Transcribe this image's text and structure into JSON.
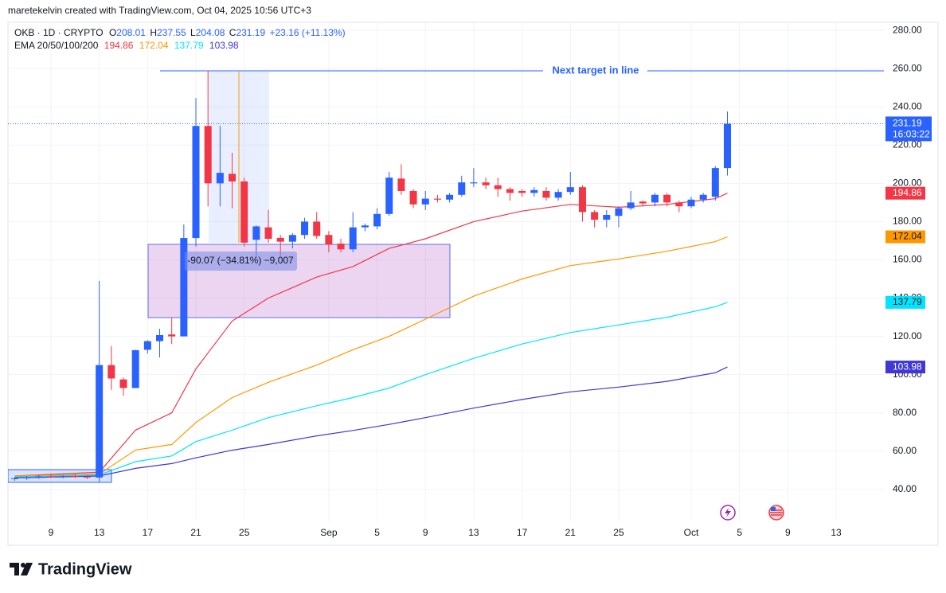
{
  "header": {
    "credit": "maretekelvin created with TradingView.com, Oct 04, 2025 10:56 UTC+3",
    "symbol": "OKB · 1D · CRYPTO",
    "ohlc_labels": [
      "O",
      "H",
      "L",
      "C"
    ],
    "change": "+23.16 (+11.13%)",
    "ema_label": "EMA 20/50/100/200",
    "countdown": "16:03:22",
    "logo": "TradingView"
  },
  "chart_data": {
    "type": "candlestick",
    "up_color": "#2962ff",
    "down_color": "#f23645",
    "x": [
      "2025-08-06",
      "2025-08-07",
      "2025-08-08",
      "2025-08-09",
      "2025-08-10",
      "2025-08-11",
      "2025-08-12",
      "2025-08-13",
      "2025-08-14",
      "2025-08-15",
      "2025-08-16",
      "2025-08-17",
      "2025-08-18",
      "2025-08-19",
      "2025-08-20",
      "2025-08-21",
      "2025-08-22",
      "2025-08-23",
      "2025-08-24",
      "2025-08-25",
      "2025-08-26",
      "2025-08-27",
      "2025-08-28",
      "2025-08-29",
      "2025-08-30",
      "2025-08-31",
      "2025-09-01",
      "2025-09-02",
      "2025-09-03",
      "2025-09-04",
      "2025-09-05",
      "2025-09-06",
      "2025-09-07",
      "2025-09-08",
      "2025-09-09",
      "2025-09-10",
      "2025-09-11",
      "2025-09-12",
      "2025-09-13",
      "2025-09-14",
      "2025-09-15",
      "2025-09-16",
      "2025-09-17",
      "2025-09-18",
      "2025-09-19",
      "2025-09-20",
      "2025-09-21",
      "2025-09-22",
      "2025-09-23",
      "2025-09-24",
      "2025-09-25",
      "2025-09-26",
      "2025-09-27",
      "2025-09-28",
      "2025-09-29",
      "2025-09-30",
      "2025-10-01",
      "2025-10-02",
      "2025-10-03",
      "2025-10-04"
    ],
    "open": [
      45.5,
      45.8,
      46.3,
      46.8,
      46.5,
      47,
      46.5,
      46.2,
      105,
      97.5,
      93,
      113,
      117.5,
      121,
      120,
      171.4,
      230,
      200,
      205,
      201,
      170.5,
      177,
      171.5,
      169.5,
      173,
      180,
      173,
      168.5,
      165.5,
      177,
      177.5,
      184,
      202.5,
      196,
      189,
      192,
      191.5,
      194,
      200,
      200.5,
      199,
      197,
      196,
      195,
      196,
      192.5,
      195.5,
      198,
      185,
      181,
      183,
      187,
      190.5,
      190,
      194,
      190,
      188,
      191.5,
      193,
      208.01
    ],
    "high": [
      46.5,
      47,
      47.5,
      47.8,
      47.5,
      48,
      47.5,
      149,
      115,
      98.5,
      113,
      118,
      124,
      130,
      178.5,
      244.6,
      259,
      230,
      216,
      203,
      178,
      186,
      173,
      174,
      182,
      185,
      175,
      171,
      185,
      179,
      187,
      206,
      210,
      197,
      196,
      194,
      195,
      204,
      208,
      203,
      203,
      198,
      197,
      198,
      198,
      197,
      206,
      199,
      186,
      186,
      188,
      196,
      191,
      195,
      195,
      191,
      193,
      195,
      209,
      237.55
    ],
    "low": [
      44.5,
      45,
      45.5,
      46,
      45.8,
      46,
      45.5,
      44,
      92,
      89,
      93,
      111,
      109,
      116,
      120,
      167,
      188,
      188,
      187,
      167,
      161,
      169,
      162,
      166,
      171,
      171,
      164,
      164,
      164,
      175,
      176,
      183,
      194,
      187,
      186,
      190,
      190,
      193,
      198,
      197,
      193,
      191,
      193,
      193,
      191,
      191,
      194,
      180,
      177,
      177,
      177,
      186,
      188,
      188,
      188,
      185,
      187,
      190,
      191,
      204.08
    ],
    "close": [
      45.8,
      46.3,
      46.8,
      46.5,
      47,
      46.5,
      46.2,
      105,
      98,
      93,
      112.8,
      117.5,
      120.7,
      120,
      171.4,
      230,
      200,
      205.5,
      201,
      169,
      177.5,
      171,
      169.5,
      173,
      180,
      172.5,
      168,
      165.5,
      177,
      178,
      184,
      203,
      196,
      189,
      192,
      191.5,
      194,
      200.5,
      200.5,
      199,
      197,
      195,
      195,
      196.5,
      192.5,
      195.5,
      198,
      185,
      181,
      183.5,
      187,
      190,
      189.5,
      194,
      190,
      188,
      191.5,
      194,
      208,
      231.19
    ],
    "series": [
      {
        "color": "#f23645",
        "x": [
          "2025-08-06",
          "2025-08-13",
          "2025-08-16",
          "2025-08-19",
          "2025-08-21",
          "2025-08-24",
          "2025-08-27",
          "2025-08-31",
          "2025-09-03",
          "2025-09-06",
          "2025-09-09",
          "2025-09-13",
          "2025-09-17",
          "2025-09-21",
          "2025-09-25",
          "2025-09-29",
          "2025-10-03",
          "2025-10-04"
        ],
        "values": [
          47,
          49,
          71,
          80,
          103,
          128,
          140,
          151,
          156.5,
          166,
          171,
          180,
          185.5,
          189,
          187.5,
          189,
          192,
          194.86
        ]
      },
      {
        "color": "#ff9800",
        "x": [
          "2025-08-06",
          "2025-08-13",
          "2025-08-16",
          "2025-08-19",
          "2025-08-21",
          "2025-08-24",
          "2025-08-27",
          "2025-08-31",
          "2025-09-03",
          "2025-09-06",
          "2025-09-09",
          "2025-09-13",
          "2025-09-17",
          "2025-09-21",
          "2025-09-25",
          "2025-09-29",
          "2025-10-03",
          "2025-10-04"
        ],
        "values": [
          47,
          48,
          60.6,
          63.5,
          75,
          88,
          96,
          105,
          113,
          120,
          129,
          141,
          150,
          157,
          160.5,
          164.5,
          169.5,
          172.04
        ]
      },
      {
        "color": "#00e5ff",
        "x": [
          "2025-08-06",
          "2025-08-13",
          "2025-08-16",
          "2025-08-19",
          "2025-08-21",
          "2025-08-24",
          "2025-08-27",
          "2025-08-31",
          "2025-09-03",
          "2025-09-06",
          "2025-09-09",
          "2025-09-13",
          "2025-09-17",
          "2025-09-21",
          "2025-09-25",
          "2025-09-29",
          "2025-10-03",
          "2025-10-04"
        ],
        "values": [
          46.5,
          47.5,
          54.5,
          57.5,
          65,
          71,
          77.5,
          83.7,
          88,
          93,
          100,
          108.5,
          116,
          122,
          126,
          130,
          135.5,
          137.79
        ]
      },
      {
        "color": "#3f37d6",
        "x": [
          "2025-08-06",
          "2025-08-13",
          "2025-08-16",
          "2025-08-19",
          "2025-08-21",
          "2025-08-24",
          "2025-08-27",
          "2025-08-31",
          "2025-09-03",
          "2025-09-06",
          "2025-09-09",
          "2025-09-13",
          "2025-09-17",
          "2025-09-21",
          "2025-09-25",
          "2025-09-29",
          "2025-10-03",
          "2025-10-04"
        ],
        "values": [
          46,
          47,
          51,
          53.5,
          56.5,
          60.5,
          63.5,
          68,
          70.8,
          74,
          77.5,
          82.5,
          87,
          91,
          93.5,
          96.5,
          101,
          103.98
        ]
      }
    ],
    "xlim": [
      "2025-08-05",
      "2025-10-17"
    ],
    "xticks": [
      {
        "value": "2025-08-09",
        "label": "9"
      },
      {
        "value": "2025-08-13",
        "label": "13"
      },
      {
        "value": "2025-08-17",
        "label": "17"
      },
      {
        "value": "2025-08-21",
        "label": "21"
      },
      {
        "value": "2025-08-25",
        "label": "25"
      },
      {
        "value": "2025-09-01",
        "label": "Sep"
      },
      {
        "value": "2025-09-05",
        "label": "5"
      },
      {
        "value": "2025-09-09",
        "label": "9"
      },
      {
        "value": "2025-09-13",
        "label": "13"
      },
      {
        "value": "2025-09-17",
        "label": "17"
      },
      {
        "value": "2025-09-21",
        "label": "21"
      },
      {
        "value": "2025-09-25",
        "label": "25"
      },
      {
        "value": "2025-10-01",
        "label": "Oct"
      },
      {
        "value": "2025-10-05",
        "label": "5"
      },
      {
        "value": "2025-10-09",
        "label": "9"
      },
      {
        "value": "2025-10-13",
        "label": "13"
      }
    ],
    "ylim": [
      23.3,
      284.2
    ],
    "yticks": [
      {
        "value": 40,
        "label": "40.00"
      },
      {
        "value": 60,
        "label": "60.00"
      },
      {
        "value": 80,
        "label": "80.00"
      },
      {
        "value": 100,
        "label": "100.00"
      },
      {
        "value": 120,
        "label": "120.00"
      },
      {
        "value": 140,
        "label": "140.00"
      },
      {
        "value": 160,
        "label": "160.00"
      },
      {
        "value": 180,
        "label": "180.00"
      },
      {
        "value": 200,
        "label": "200.00"
      },
      {
        "value": 220,
        "label": "220.00"
      },
      {
        "value": 240,
        "label": "240.00"
      },
      {
        "value": 260,
        "label": "260.00"
      },
      {
        "value": 280,
        "label": "280.00"
      }
    ],
    "grid": true,
    "annotations": [
      "Next target in line",
      "-90.07 (−34.81%) −9,007"
    ]
  }
}
